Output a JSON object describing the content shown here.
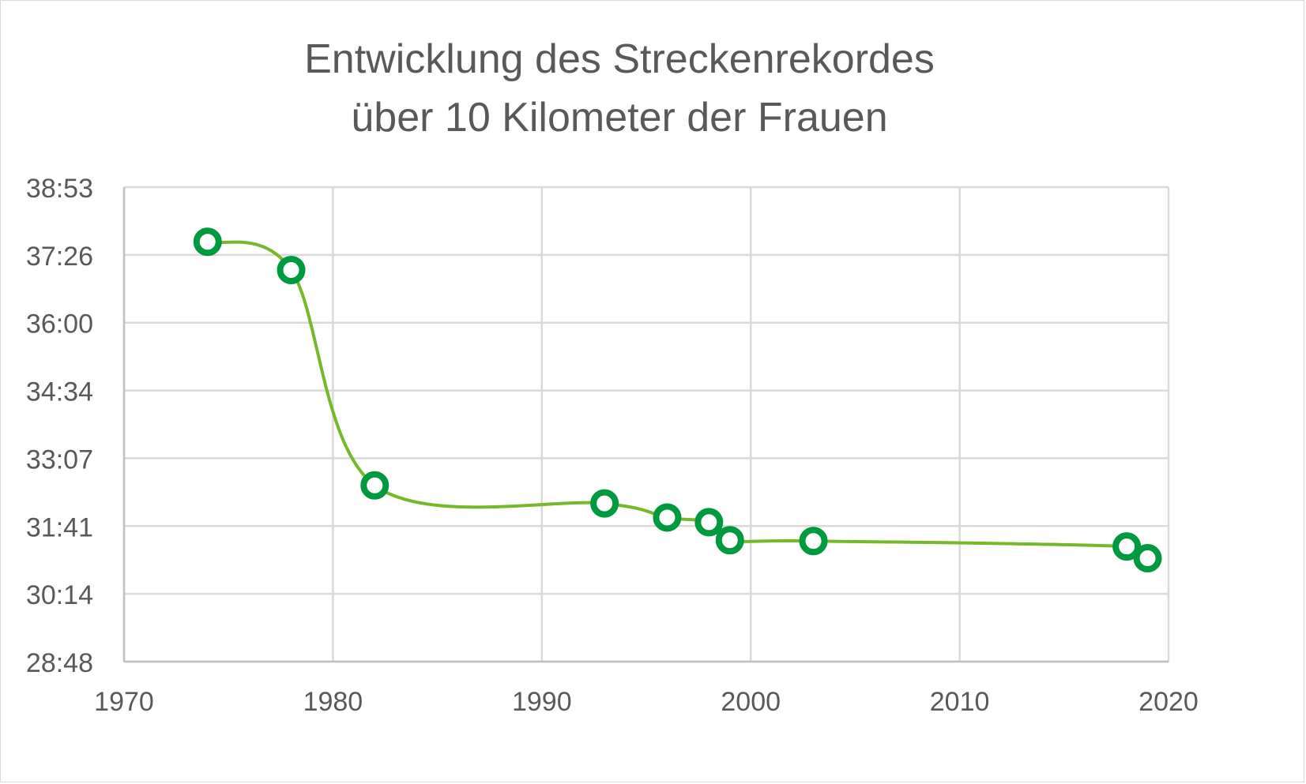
{
  "chart_data": {
    "type": "line",
    "title": [
      "Entwicklung des Streckenrekordes",
      "über 10 Kilometer der Frauen"
    ],
    "xlabel": "",
    "ylabel": "",
    "xlim": [
      1970,
      2020
    ],
    "x_ticks": [
      "1970",
      "1980",
      "1990",
      "2000",
      "2010",
      "2020"
    ],
    "ylim": [
      "28:48",
      "38:53"
    ],
    "y_ticks": [
      "28:48",
      "30:14",
      "31:41",
      "33:07",
      "34:34",
      "36:00",
      "37:26",
      "38:53"
    ],
    "grid": true,
    "smoothed": true,
    "line_color": "#76b82a",
    "marker_color": "#009a3e",
    "marker": "hollow-circle",
    "x": [
      1974,
      1978,
      1982,
      1993,
      1996,
      1998,
      1999,
      2003,
      2018,
      2019
    ],
    "y": [
      "37:44",
      "37:08",
      "32:33",
      "32:10",
      "31:52",
      "31:46",
      "31:23",
      "31:22",
      "31:15",
      "31:00"
    ]
  }
}
